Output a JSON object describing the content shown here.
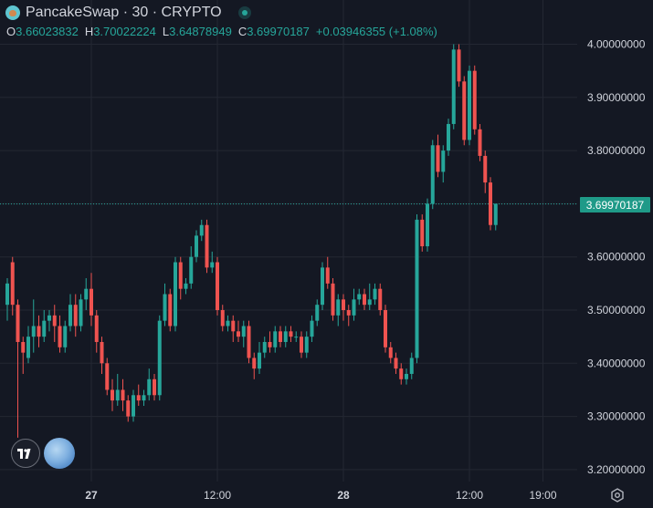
{
  "header": {
    "title": "PancakeSwap · 30 · CRYPTO"
  },
  "ohlc": {
    "open_label": "O",
    "open": "3.66023832",
    "high_label": "H",
    "high": "3.70022224",
    "low_label": "L",
    "low": "3.64878949",
    "close_label": "C",
    "close": "3.69970187",
    "change": "+0.03946355 (+1.08%)"
  },
  "price_badge": "3.69970187",
  "colors": {
    "up": "#26a69a",
    "down": "#ef5350",
    "background": "#141823",
    "grid": "#232733",
    "text": "#d1d4dc"
  },
  "icons": {
    "logo": "pancakeswap-logo-icon",
    "status": "market-status-icon",
    "tradingview": "tradingview-logo-icon",
    "moon": "moon-icon",
    "settings": "settings-icon"
  },
  "chart_data": {
    "type": "candlestick",
    "title": "",
    "xlabel": "",
    "ylabel": "",
    "ylim": [
      3.19,
      4.04
    ],
    "grid": true,
    "y_ticks": [
      "4.00000000",
      "3.90000000",
      "3.80000000",
      "3.70000000",
      "3.60000000",
      "3.50000000",
      "3.40000000",
      "3.30000000",
      "3.20000000"
    ],
    "y_tick_values": [
      4.0,
      3.9,
      3.8,
      3.7,
      3.6,
      3.5,
      3.4,
      3.3,
      3.2
    ],
    "x_ticks": [
      {
        "label": "27",
        "index": 16,
        "bold": true
      },
      {
        "label": "12:00",
        "index": 40,
        "bold": false
      },
      {
        "label": "28",
        "index": 64,
        "bold": true
      },
      {
        "label": "12:00",
        "index": 88,
        "bold": false
      },
      {
        "label": "19:00",
        "index": 102,
        "bold": false
      }
    ],
    "last_price": 3.69970187,
    "candles": [
      [
        3.51,
        3.55,
        3.56,
        3.48
      ],
      [
        3.59,
        3.51,
        3.6,
        3.49
      ],
      [
        3.51,
        3.44,
        3.52,
        3.26
      ],
      [
        3.44,
        3.42,
        3.45,
        3.38
      ],
      [
        3.41,
        3.45,
        3.47,
        3.4
      ],
      [
        3.45,
        3.47,
        3.52,
        3.42
      ],
      [
        3.47,
        3.45,
        3.49,
        3.43
      ],
      [
        3.45,
        3.48,
        3.5,
        3.44
      ],
      [
        3.48,
        3.49,
        3.5,
        3.46
      ],
      [
        3.49,
        3.47,
        3.51,
        3.44
      ],
      [
        3.47,
        3.43,
        3.49,
        3.42
      ],
      [
        3.43,
        3.47,
        3.48,
        3.42
      ],
      [
        3.47,
        3.51,
        3.53,
        3.46
      ],
      [
        3.51,
        3.47,
        3.53,
        3.45
      ],
      [
        3.47,
        3.52,
        3.53,
        3.46
      ],
      [
        3.52,
        3.54,
        3.56,
        3.5
      ],
      [
        3.54,
        3.49,
        3.57,
        3.47
      ],
      [
        3.49,
        3.44,
        3.5,
        3.42
      ],
      [
        3.44,
        3.4,
        3.45,
        3.38
      ],
      [
        3.4,
        3.35,
        3.41,
        3.34
      ],
      [
        3.35,
        3.33,
        3.37,
        3.31
      ],
      [
        3.33,
        3.35,
        3.38,
        3.32
      ],
      [
        3.35,
        3.33,
        3.37,
        3.31
      ],
      [
        3.33,
        3.3,
        3.34,
        3.29
      ],
      [
        3.3,
        3.34,
        3.35,
        3.29
      ],
      [
        3.34,
        3.33,
        3.36,
        3.32
      ],
      [
        3.33,
        3.34,
        3.35,
        3.32
      ],
      [
        3.34,
        3.37,
        3.39,
        3.33
      ],
      [
        3.37,
        3.34,
        3.38,
        3.33
      ],
      [
        3.34,
        3.48,
        3.49,
        3.33
      ],
      [
        3.48,
        3.53,
        3.55,
        3.47
      ],
      [
        3.53,
        3.47,
        3.54,
        3.46
      ],
      [
        3.47,
        3.59,
        3.6,
        3.46
      ],
      [
        3.59,
        3.54,
        3.6,
        3.52
      ],
      [
        3.54,
        3.55,
        3.56,
        3.53
      ],
      [
        3.55,
        3.6,
        3.62,
        3.54
      ],
      [
        3.6,
        3.64,
        3.65,
        3.59
      ],
      [
        3.64,
        3.66,
        3.67,
        3.63
      ],
      [
        3.66,
        3.58,
        3.67,
        3.57
      ],
      [
        3.58,
        3.59,
        3.61,
        3.57
      ],
      [
        3.59,
        3.5,
        3.6,
        3.49
      ],
      [
        3.5,
        3.47,
        3.51,
        3.46
      ],
      [
        3.47,
        3.48,
        3.49,
        3.46
      ],
      [
        3.48,
        3.46,
        3.49,
        3.44
      ],
      [
        3.46,
        3.45,
        3.48,
        3.44
      ],
      [
        3.45,
        3.47,
        3.48,
        3.43
      ],
      [
        3.47,
        3.41,
        3.48,
        3.4
      ],
      [
        3.41,
        3.39,
        3.42,
        3.37
      ],
      [
        3.39,
        3.42,
        3.44,
        3.38
      ],
      [
        3.42,
        3.44,
        3.45,
        3.41
      ],
      [
        3.44,
        3.43,
        3.46,
        3.42
      ],
      [
        3.43,
        3.46,
        3.47,
        3.42
      ],
      [
        3.46,
        3.44,
        3.47,
        3.43
      ],
      [
        3.44,
        3.46,
        3.47,
        3.43
      ],
      [
        3.46,
        3.45,
        3.47,
        3.44
      ],
      [
        3.45,
        3.45,
        3.46,
        3.44
      ],
      [
        3.45,
        3.42,
        3.46,
        3.41
      ],
      [
        3.42,
        3.45,
        3.46,
        3.41
      ],
      [
        3.45,
        3.48,
        3.49,
        3.44
      ],
      [
        3.48,
        3.51,
        3.52,
        3.47
      ],
      [
        3.51,
        3.58,
        3.59,
        3.5
      ],
      [
        3.58,
        3.55,
        3.6,
        3.54
      ],
      [
        3.55,
        3.49,
        3.56,
        3.48
      ],
      [
        3.49,
        3.52,
        3.53,
        3.47
      ],
      [
        3.52,
        3.5,
        3.53,
        3.48
      ],
      [
        3.5,
        3.49,
        3.51,
        3.47
      ],
      [
        3.49,
        3.52,
        3.54,
        3.48
      ],
      [
        3.52,
        3.53,
        3.54,
        3.51
      ],
      [
        3.53,
        3.51,
        3.54,
        3.5
      ],
      [
        3.51,
        3.52,
        3.55,
        3.5
      ],
      [
        3.52,
        3.54,
        3.55,
        3.51
      ],
      [
        3.54,
        3.5,
        3.55,
        3.49
      ],
      [
        3.5,
        3.43,
        3.51,
        3.42
      ],
      [
        3.43,
        3.41,
        3.44,
        3.4
      ],
      [
        3.41,
        3.39,
        3.42,
        3.38
      ],
      [
        3.39,
        3.37,
        3.4,
        3.36
      ],
      [
        3.37,
        3.38,
        3.39,
        3.36
      ],
      [
        3.38,
        3.41,
        3.42,
        3.37
      ],
      [
        3.41,
        3.67,
        3.68,
        3.4
      ],
      [
        3.67,
        3.62,
        3.68,
        3.61
      ],
      [
        3.62,
        3.7,
        3.71,
        3.61
      ],
      [
        3.7,
        3.81,
        3.82,
        3.69
      ],
      [
        3.81,
        3.76,
        3.83,
        3.75
      ],
      [
        3.76,
        3.8,
        3.81,
        3.74
      ],
      [
        3.8,
        3.85,
        3.86,
        3.79
      ],
      [
        3.85,
        3.99,
        4.0,
        3.84
      ],
      [
        3.99,
        3.93,
        4.0,
        3.92
      ],
      [
        3.93,
        3.82,
        3.94,
        3.81
      ],
      [
        3.82,
        3.95,
        3.96,
        3.81
      ],
      [
        3.95,
        3.84,
        3.96,
        3.83
      ],
      [
        3.84,
        3.79,
        3.85,
        3.78
      ],
      [
        3.79,
        3.74,
        3.8,
        3.72
      ],
      [
        3.74,
        3.66,
        3.75,
        3.65
      ],
      [
        3.66,
        3.7,
        3.7,
        3.65
      ]
    ]
  }
}
